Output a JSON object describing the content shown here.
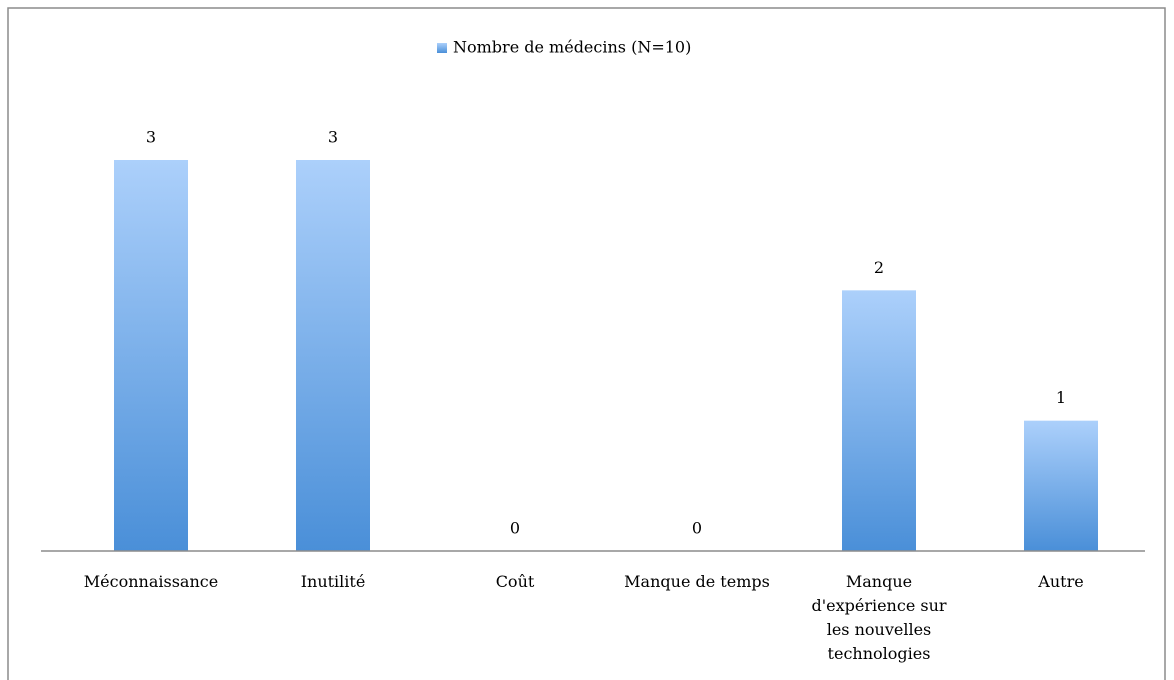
{
  "chart_data": {
    "type": "bar",
    "series": [
      {
        "name": "Nombre de médecins (N=10)",
        "color": "#5b9bdf",
        "values": [
          3,
          3,
          0,
          0,
          2,
          1
        ]
      }
    ],
    "categories": [
      "Méconnaissance",
      "Inutilité",
      "Coût",
      "Manque de temps",
      "Manque d'expérience sur les nouvelles technologies",
      "Autre"
    ],
    "ylim": [
      0,
      3
    ],
    "legend": "top"
  }
}
